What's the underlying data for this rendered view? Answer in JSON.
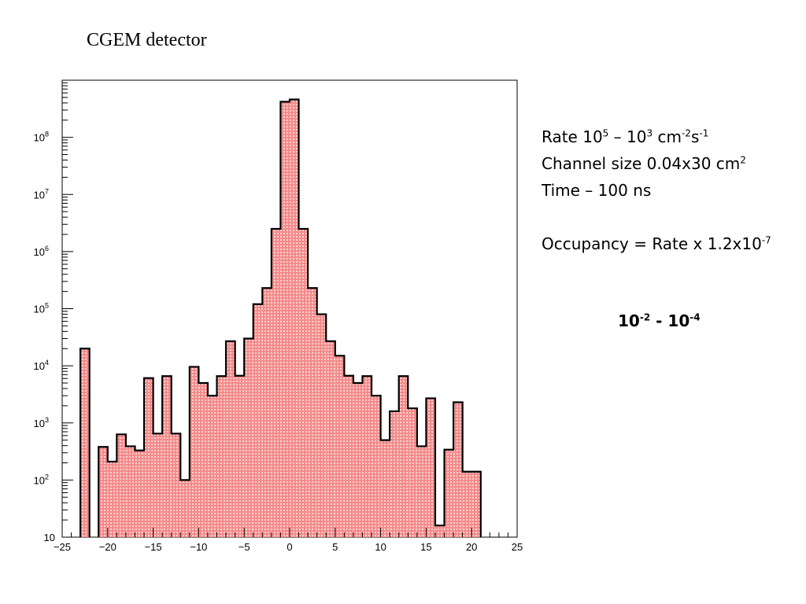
{
  "title": "CGEM detector",
  "info": {
    "rate": {
      "prefix": "Rate 10",
      "exp1": "5",
      "mid": " – 10",
      "exp2": "3",
      "unit": " cm",
      "exp3": "-2",
      "unit2": "s",
      "exp4": "-1"
    },
    "channel": {
      "text": "Channel size 0.04x30 cm",
      "exp": "2"
    },
    "time": "Time – 100 ns",
    "occupancy": {
      "text": "Occupancy = Rate x 1.2x10",
      "exp": "-7"
    }
  },
  "result": {
    "a": "10",
    "a_exp": "-2",
    "sep": " - 10",
    "b_exp": "-4"
  },
  "colors": {
    "bar_fill": "#f07a7a",
    "bar_outline": "#000000",
    "frame": "#000000"
  },
  "chart_data": {
    "type": "bar",
    "title": "",
    "xlabel": "",
    "ylabel": "",
    "xlim": [
      -25,
      25
    ],
    "ylim": [
      10,
      1000000000
    ],
    "yscale": "log",
    "bin_width": 1,
    "x_tick_labels": [
      "−25",
      "−20",
      "−15",
      "−10",
      "−5",
      "0",
      "5",
      "10",
      "15",
      "20",
      "25"
    ],
    "x_tick_values": [
      -25,
      -20,
      -15,
      -10,
      -5,
      0,
      5,
      10,
      15,
      20,
      25
    ],
    "y_tick_values": [
      10,
      100,
      1000,
      10000,
      100000,
      1000000,
      10000000,
      100000000
    ],
    "y_tick_labels": [
      {
        "base": "10",
        "exp": ""
      },
      {
        "base": "10",
        "exp": "2"
      },
      {
        "base": "10",
        "exp": "3"
      },
      {
        "base": "10",
        "exp": "4"
      },
      {
        "base": "10",
        "exp": "5"
      },
      {
        "base": "10",
        "exp": "6"
      },
      {
        "base": "10",
        "exp": "7"
      },
      {
        "base": "10",
        "exp": "8"
      }
    ],
    "bins": [
      {
        "x0": -23,
        "value": 20000
      },
      {
        "x0": -21,
        "value": 380
      },
      {
        "x0": -20,
        "value": 210
      },
      {
        "x0": -19,
        "value": 630
      },
      {
        "x0": -18,
        "value": 390
      },
      {
        "x0": -17,
        "value": 330
      },
      {
        "x0": -16,
        "value": 6100
      },
      {
        "x0": -15,
        "value": 650
      },
      {
        "x0": -14,
        "value": 6600
      },
      {
        "x0": -13,
        "value": 650
      },
      {
        "x0": -12,
        "value": 100
      },
      {
        "x0": -11,
        "value": 9600
      },
      {
        "x0": -10,
        "value": 5000
      },
      {
        "x0": -9,
        "value": 3000
      },
      {
        "x0": -8,
        "value": 6600
      },
      {
        "x0": -7,
        "value": 27000
      },
      {
        "x0": -6,
        "value": 6700
      },
      {
        "x0": -5,
        "value": 30000
      },
      {
        "x0": -4,
        "value": 120000
      },
      {
        "x0": -3,
        "value": 230000
      },
      {
        "x0": -2,
        "value": 2500000
      },
      {
        "x0": -1,
        "value": 420000000
      },
      {
        "x0": 0,
        "value": 460000000
      },
      {
        "x0": 1,
        "value": 2500000
      },
      {
        "x0": 2,
        "value": 230000
      },
      {
        "x0": 3,
        "value": 80000
      },
      {
        "x0": 4,
        "value": 27000
      },
      {
        "x0": 5,
        "value": 15000
      },
      {
        "x0": 6,
        "value": 6700
      },
      {
        "x0": 7,
        "value": 5000
      },
      {
        "x0": 8,
        "value": 6600
      },
      {
        "x0": 9,
        "value": 3000
      },
      {
        "x0": 10,
        "value": 500
      },
      {
        "x0": 11,
        "value": 1600
      },
      {
        "x0": 12,
        "value": 6600
      },
      {
        "x0": 13,
        "value": 1800
      },
      {
        "x0": 14,
        "value": 390
      },
      {
        "x0": 15,
        "value": 2700
      },
      {
        "x0": 16,
        "value": 16
      },
      {
        "x0": 17,
        "value": 340
      },
      {
        "x0": 18,
        "value": 2300
      },
      {
        "x0": 19,
        "value": 140
      },
      {
        "x0": 20,
        "value": 140
      }
    ]
  }
}
